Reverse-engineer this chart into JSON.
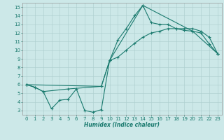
{
  "title": "",
  "xlabel": "Humidex (Indice chaleur)",
  "ylabel": "",
  "bg_color": "#cce8e8",
  "line_color": "#1a7a6e",
  "xlim": [
    -0.5,
    23.5
  ],
  "ylim": [
    2.5,
    15.5
  ],
  "xticks": [
    0,
    1,
    2,
    3,
    4,
    5,
    6,
    7,
    8,
    9,
    10,
    11,
    12,
    13,
    14,
    15,
    16,
    17,
    18,
    19,
    20,
    21,
    22,
    23
  ],
  "yticks": [
    3,
    4,
    5,
    6,
    7,
    8,
    9,
    10,
    11,
    12,
    13,
    14,
    15
  ],
  "series": [
    {
      "x": [
        0,
        1,
        2,
        3,
        4,
        5,
        6,
        7,
        8,
        9,
        10,
        11,
        12,
        13,
        14,
        15,
        16,
        17,
        18,
        19,
        20,
        21,
        22,
        23
      ],
      "y": [
        6.0,
        5.7,
        5.2,
        3.2,
        4.2,
        4.3,
        5.5,
        3.0,
        2.8,
        3.1,
        8.8,
        11.2,
        12.5,
        14.0,
        15.2,
        13.2,
        13.0,
        13.0,
        12.5,
        12.3,
        12.2,
        12.0,
        10.7,
        9.6
      ]
    },
    {
      "x": [
        0,
        1,
        2,
        5,
        9,
        10,
        11,
        12,
        13,
        14,
        15,
        16,
        17,
        18,
        19,
        20,
        21,
        22,
        23
      ],
      "y": [
        6.0,
        5.7,
        5.2,
        5.5,
        5.8,
        8.8,
        9.2,
        10.0,
        10.8,
        11.5,
        12.0,
        12.2,
        12.5,
        12.5,
        12.5,
        12.5,
        12.2,
        11.5,
        9.6
      ]
    },
    {
      "x": [
        0,
        9,
        10,
        14,
        20,
        23
      ],
      "y": [
        6.0,
        5.8,
        8.8,
        15.2,
        12.2,
        9.6
      ]
    }
  ]
}
